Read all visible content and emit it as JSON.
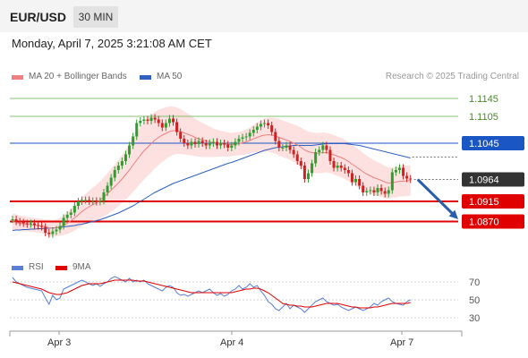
{
  "header": {
    "pair": "EUR/USD",
    "timeframe": "30 MIN"
  },
  "datetime": "Monday, April 7, 2025 3:21:08 AM CET",
  "legend": {
    "ma20": "MA 20 + Bollinger Bands",
    "ma50": "MA 50",
    "rsi": "RSI",
    "rsi_ma": "9MA"
  },
  "credit": "Research © 2025 Trading Central",
  "colors": {
    "ma20": "#f08080",
    "ma50": "#3060c0",
    "band": "#fde0e0",
    "up": "#2e9e2e",
    "down": "#cc2222",
    "resistance": "#88c070",
    "pivot": "#1a56c4",
    "support": "#e00000",
    "arrow": "#2a5ea8"
  },
  "chart_data": {
    "type": "line",
    "y_range": [
      1.0795,
      1.1175
    ],
    "levels": [
      {
        "label": "1.1145",
        "value": 1.1145,
        "kind": "resistance"
      },
      {
        "label": "1.1105",
        "value": 1.1105,
        "kind": "resistance"
      },
      {
        "label": "1.1045",
        "value": 1.1045,
        "kind": "pivot"
      },
      {
        "label": "1.0964",
        "value": 1.0964,
        "kind": "last"
      },
      {
        "label": "1.0915",
        "value": 1.0915,
        "kind": "support"
      },
      {
        "label": "1.0870",
        "value": 1.087,
        "kind": "support"
      }
    ],
    "x_ticks": [
      "Apr 3",
      "Apr 4",
      "Apr 7"
    ],
    "close": [
      1.0875,
      1.087,
      1.0868,
      1.0866,
      1.0864,
      1.0866,
      1.0862,
      1.086,
      1.0858,
      1.0845,
      1.0842,
      1.0848,
      1.0852,
      1.086,
      1.0878,
      1.0885,
      1.089,
      1.0905,
      1.0915,
      1.0918,
      1.0918,
      1.0915,
      1.0916,
      1.0914,
      1.0916,
      1.0935,
      1.095,
      1.0968,
      1.0985,
      1.0995,
      1.1005,
      1.102,
      1.104,
      1.106,
      1.109,
      1.1095,
      1.1098,
      1.1095,
      1.1102,
      1.1098,
      1.109,
      1.108,
      1.109,
      1.11,
      1.1092,
      1.107,
      1.1055,
      1.1045,
      1.104,
      1.1048,
      1.1043,
      1.105,
      1.1045,
      1.104,
      1.1045,
      1.1048,
      1.104,
      1.1045,
      1.1042,
      1.1035,
      1.104,
      1.1048,
      1.1055,
      1.1058,
      1.106,
      1.1068,
      1.1075,
      1.1082,
      1.1088,
      1.109,
      1.1085,
      1.107,
      1.105,
      1.1035,
      1.1035,
      1.104,
      1.103,
      1.102,
      1.1005,
      1.0995,
      1.0965,
      1.0978,
      1.1,
      1.1025,
      1.103,
      1.104,
      1.103,
      1.1005,
      1.099,
      1.0995,
      1.099,
      1.0985,
      1.0978,
      1.0958,
      1.0965,
      1.095,
      1.0935,
      1.0938,
      1.094,
      1.0935,
      1.0945,
      1.0938,
      1.0932,
      1.094,
      1.098,
      1.0985,
      1.099,
      1.0972,
      1.0966,
      1.0964
    ],
    "ma20": [
      1.087,
      1.0868,
      1.0866,
      1.0865,
      1.0864,
      1.0863,
      1.0862,
      1.0861,
      1.086,
      1.0858,
      1.0856,
      1.0855,
      1.0856,
      1.0858,
      1.0862,
      1.0866,
      1.0872,
      1.0878,
      1.0885,
      1.0892,
      1.0898,
      1.0903,
      1.0908,
      1.0912,
      1.0918,
      1.0925,
      1.0932,
      1.094,
      1.0948,
      1.0956,
      1.0965,
      1.0975,
      1.0985,
      1.0996,
      1.1007,
      1.1018,
      1.1028,
      1.1036,
      1.1044,
      1.1052,
      1.1058,
      1.1063,
      1.1067,
      1.1071,
      1.1073,
      1.1073,
      1.1071,
      1.1068,
      1.1065,
      1.1062,
      1.1058,
      1.1055,
      1.1052,
      1.105,
      1.1048,
      1.1046,
      1.1045,
      1.1044,
      1.1043,
      1.1042,
      1.1042,
      1.1043,
      1.1044,
      1.1046,
      1.1048,
      1.1051,
      1.1055,
      1.1058,
      1.1061,
      1.1063,
      1.1064,
      1.1063,
      1.1061,
      1.1058,
      1.1055,
      1.1052,
      1.1049,
      1.1045,
      1.1041,
      1.1036,
      1.103,
      1.1026,
      1.1024,
      1.1023,
      1.1023,
      1.1024,
      1.1024,
      1.1022,
      1.1019,
      1.1016,
      1.1013,
      1.1009,
      1.1004,
      1.0998,
      1.0993,
      1.0987,
      1.0981,
      1.0976,
      1.0972,
      1.0968,
      1.0965,
      1.0962,
      1.0958,
      1.0956,
      1.0957,
      1.0958,
      1.096,
      1.096,
      1.0961,
      1.0962
    ],
    "ma50": [
      1.085,
      1.0851,
      1.0851,
      1.0852,
      1.0852,
      1.0853,
      1.0853,
      1.0854,
      1.0854,
      1.0855,
      1.0855,
      1.0856,
      1.0856,
      1.0857,
      1.0858,
      1.0859,
      1.086,
      1.0861,
      1.0863,
      1.0864,
      1.0866,
      1.0868,
      1.087,
      1.0872,
      1.0874,
      1.0877,
      1.088,
      1.0883,
      1.0886,
      1.0889,
      1.0893,
      1.0897,
      1.0901,
      1.0905,
      1.091,
      1.0915,
      1.092,
      1.0925,
      1.093,
      1.0935,
      1.0939,
      1.0943,
      1.0947,
      1.0951,
      1.0955,
      1.0958,
      1.0961,
      1.0964,
      1.0967,
      1.097,
      1.0973,
      1.0976,
      1.0979,
      1.0982,
      1.0985,
      1.0988,
      1.0991,
      1.0994,
      1.0997,
      1.1,
      1.1002,
      1.1005,
      1.1008,
      1.1011,
      1.1014,
      1.1017,
      1.102,
      1.1023,
      1.1026,
      1.1029,
      1.1031,
      1.1033,
      1.1035,
      1.1036,
      1.1037,
      1.1038,
      1.1039,
      1.104,
      1.104,
      1.104,
      1.104,
      1.104,
      1.104,
      1.1041,
      1.1042,
      1.1043,
      1.1044,
      1.1044,
      1.1044,
      1.1044,
      1.1044,
      1.1044,
      1.1043,
      1.1042,
      1.1041,
      1.104,
      1.1038,
      1.1036,
      1.1034,
      1.1032,
      1.103,
      1.1028,
      1.1026,
      1.1024,
      1.1022,
      1.102,
      1.1018,
      1.1016,
      1.1014,
      1.1012
    ],
    "band_width": [
      0.0018,
      0.0018,
      0.0017,
      0.0017,
      0.0016,
      0.0016,
      0.0016,
      0.0016,
      0.0016,
      0.0017,
      0.0018,
      0.0018,
      0.0019,
      0.002,
      0.0022,
      0.0024,
      0.0026,
      0.0028,
      0.003,
      0.0032,
      0.0034,
      0.0036,
      0.0038,
      0.004,
      0.0042,
      0.0044,
      0.0046,
      0.0048,
      0.005,
      0.0052,
      0.0054,
      0.0056,
      0.0058,
      0.006,
      0.0062,
      0.0063,
      0.0064,
      0.0064,
      0.0064,
      0.0063,
      0.0062,
      0.006,
      0.0058,
      0.0056,
      0.0054,
      0.0052,
      0.005,
      0.0048,
      0.0046,
      0.0044,
      0.0042,
      0.004,
      0.0038,
      0.0036,
      0.0034,
      0.0032,
      0.003,
      0.0029,
      0.0028,
      0.0027,
      0.0026,
      0.0026,
      0.0026,
      0.0027,
      0.0028,
      0.0029,
      0.0031,
      0.0033,
      0.0035,
      0.0037,
      0.0038,
      0.0039,
      0.004,
      0.0041,
      0.0041,
      0.0041,
      0.0041,
      0.0042,
      0.0043,
      0.0044,
      0.0045,
      0.0045,
      0.0045,
      0.0045,
      0.0045,
      0.0045,
      0.0044,
      0.0044,
      0.0044,
      0.0044,
      0.0044,
      0.0044,
      0.0044,
      0.0044,
      0.0043,
      0.0043,
      0.0042,
      0.0041,
      0.004,
      0.0039,
      0.0038,
      0.0037,
      0.0036,
      0.0035,
      0.0034,
      0.0034,
      0.0034,
      0.0034,
      0.0034,
      0.0034
    ],
    "forecast": {
      "from": 1.0964,
      "to": 1.0875
    },
    "rsi": {
      "y_ticks": [
        70,
        50,
        30
      ],
      "y_range": [
        20,
        80
      ],
      "values": [
        75,
        70,
        68,
        66,
        64,
        63,
        62,
        61,
        60,
        52,
        45,
        55,
        50,
        52,
        62,
        64,
        66,
        68,
        70,
        72,
        70,
        68,
        66,
        68,
        65,
        68,
        70,
        74,
        76,
        74,
        72,
        70,
        74,
        70,
        72,
        70,
        72,
        68,
        66,
        64,
        62,
        60,
        64,
        66,
        64,
        58,
        55,
        56,
        54,
        56,
        58,
        60,
        58,
        60,
        62,
        58,
        55,
        57,
        54,
        56,
        60,
        62,
        66,
        62,
        64,
        68,
        64,
        66,
        60,
        55,
        48,
        45,
        40,
        38,
        42,
        46,
        40,
        44,
        42,
        40,
        36,
        40,
        44,
        48,
        50,
        52,
        48,
        46,
        44,
        45,
        42,
        40,
        38,
        40,
        42,
        40,
        38,
        40,
        42,
        46,
        44,
        48,
        50,
        52,
        48,
        46,
        45,
        44,
        48,
        50
      ],
      "ma9": [
        70,
        69,
        68,
        67,
        66,
        65,
        64,
        63,
        62,
        60,
        58,
        57,
        56,
        56,
        57,
        58,
        60,
        62,
        64,
        66,
        67,
        68,
        68,
        68,
        68,
        69,
        70,
        71,
        72,
        72,
        72,
        72,
        72,
        72,
        71,
        71,
        71,
        70,
        69,
        68,
        67,
        66,
        65,
        64,
        63,
        62,
        61,
        60,
        59,
        58,
        58,
        58,
        58,
        58,
        58,
        58,
        58,
        58,
        58,
        58,
        58,
        59,
        60,
        61,
        62,
        62,
        63,
        63,
        62,
        60,
        58,
        55,
        52,
        49,
        46,
        45,
        44,
        44,
        43,
        43,
        42,
        42,
        42,
        43,
        44,
        45,
        46,
        46,
        46,
        46,
        45,
        44,
        43,
        42,
        42,
        41,
        41,
        41,
        41,
        42,
        42,
        43,
        44,
        45,
        46,
        46,
        46,
        46,
        46,
        47
      ]
    }
  }
}
